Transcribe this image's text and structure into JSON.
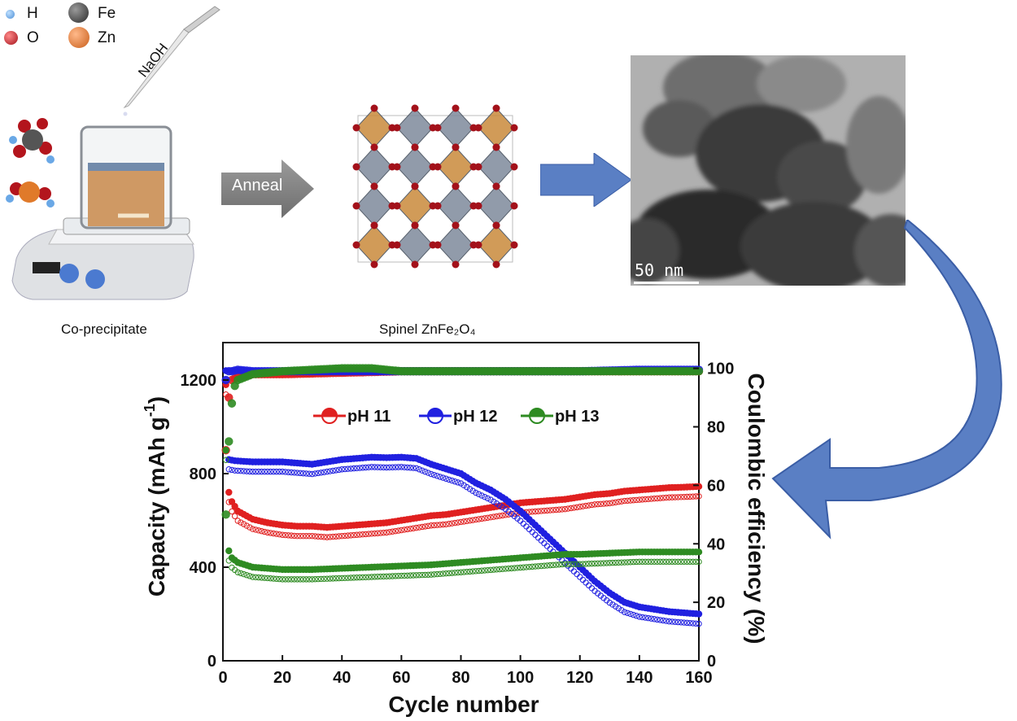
{
  "element_key": [
    {
      "symbol": "H",
      "color": "#5aa0e0"
    },
    {
      "symbol": "O",
      "color": "#c0262c"
    },
    {
      "symbol": "Fe",
      "color": "#4a4a4a"
    },
    {
      "symbol": "Zn",
      "color": "#e07a2a"
    }
  ],
  "synthesis": {
    "reagent": "NaOH",
    "caption": "Co-precipitate"
  },
  "anneal_label": "Anneal",
  "structure_caption": "Spinel ZnFe₂O₄",
  "tem": {
    "scale_label": "50 nm"
  },
  "chart_data": {
    "type": "scatter",
    "xlabel": "Cycle number",
    "ylabel": "Capacity (mAh g",
    "ylabel_sup": "-1",
    "ylabel_close": ")",
    "y2label": "Coulombic efficiency (%)",
    "xlim": [
      0,
      160
    ],
    "ylim": [
      0,
      1360
    ],
    "y2lim": [
      0,
      108.8
    ],
    "xticks": [
      "0",
      "20",
      "40",
      "60",
      "80",
      "100",
      "120",
      "140",
      "160"
    ],
    "yticks": [
      "0",
      "400",
      "800",
      "1200"
    ],
    "y2ticks": [
      "0",
      "20",
      "40",
      "60",
      "80",
      "100"
    ],
    "legend_position": "top-center",
    "series": [
      {
        "name": "pH 11",
        "color": "#e02020",
        "capacity": [
          [
            1,
            1180
          ],
          [
            2,
            720
          ],
          [
            3,
            680
          ],
          [
            5,
            640
          ],
          [
            10,
            605
          ],
          [
            15,
            590
          ],
          [
            20,
            580
          ],
          [
            25,
            575
          ],
          [
            30,
            575
          ],
          [
            35,
            570
          ],
          [
            40,
            575
          ],
          [
            45,
            580
          ],
          [
            50,
            585
          ],
          [
            55,
            590
          ],
          [
            60,
            600
          ],
          [
            65,
            610
          ],
          [
            70,
            620
          ],
          [
            75,
            625
          ],
          [
            80,
            635
          ],
          [
            85,
            645
          ],
          [
            90,
            655
          ],
          [
            95,
            665
          ],
          [
            100,
            675
          ],
          [
            105,
            680
          ],
          [
            110,
            685
          ],
          [
            115,
            690
          ],
          [
            120,
            700
          ],
          [
            125,
            710
          ],
          [
            130,
            715
          ],
          [
            135,
            725
          ],
          [
            140,
            730
          ],
          [
            145,
            735
          ],
          [
            150,
            740
          ],
          [
            155,
            742
          ],
          [
            160,
            745
          ]
        ],
        "efficiency": [
          [
            1,
            72
          ],
          [
            2,
            90
          ],
          [
            3,
            96
          ],
          [
            5,
            97
          ],
          [
            10,
            98
          ],
          [
            20,
            98
          ],
          [
            40,
            98.5
          ],
          [
            60,
            99
          ],
          [
            80,
            99
          ],
          [
            100,
            99
          ],
          [
            120,
            99
          ],
          [
            140,
            99
          ],
          [
            160,
            99
          ]
        ]
      },
      {
        "name": "pH 12",
        "color": "#2020e0",
        "capacity": [
          [
            1,
            1240
          ],
          [
            2,
            860
          ],
          [
            4,
            855
          ],
          [
            10,
            850
          ],
          [
            20,
            850
          ],
          [
            30,
            840
          ],
          [
            35,
            850
          ],
          [
            40,
            860
          ],
          [
            45,
            865
          ],
          [
            50,
            870
          ],
          [
            55,
            868
          ],
          [
            60,
            870
          ],
          [
            65,
            865
          ],
          [
            70,
            840
          ],
          [
            75,
            820
          ],
          [
            80,
            800
          ],
          [
            85,
            760
          ],
          [
            90,
            730
          ],
          [
            95,
            690
          ],
          [
            100,
            640
          ],
          [
            105,
            580
          ],
          [
            110,
            520
          ],
          [
            115,
            460
          ],
          [
            120,
            400
          ],
          [
            125,
            340
          ],
          [
            130,
            290
          ],
          [
            135,
            250
          ],
          [
            140,
            230
          ],
          [
            145,
            220
          ],
          [
            150,
            210
          ],
          [
            155,
            205
          ],
          [
            160,
            200
          ]
        ],
        "efficiency": [
          [
            1,
            96
          ],
          [
            2,
            99
          ],
          [
            3,
            99
          ],
          [
            5,
            99.5
          ],
          [
            10,
            99
          ],
          [
            20,
            99
          ],
          [
            40,
            99
          ],
          [
            60,
            99
          ],
          [
            80,
            99
          ],
          [
            100,
            99
          ],
          [
            120,
            99
          ],
          [
            140,
            99.5
          ],
          [
            160,
            99.5
          ]
        ]
      },
      {
        "name": "pH 13",
        "color": "#2e8b22",
        "capacity": [
          [
            1,
            900
          ],
          [
            2,
            470
          ],
          [
            3,
            440
          ],
          [
            5,
            420
          ],
          [
            10,
            400
          ],
          [
            15,
            395
          ],
          [
            20,
            390
          ],
          [
            30,
            390
          ],
          [
            40,
            395
          ],
          [
            50,
            400
          ],
          [
            60,
            405
          ],
          [
            70,
            410
          ],
          [
            80,
            420
          ],
          [
            90,
            430
          ],
          [
            100,
            440
          ],
          [
            105,
            445
          ],
          [
            110,
            450
          ],
          [
            115,
            455
          ],
          [
            120,
            455
          ],
          [
            130,
            460
          ],
          [
            140,
            465
          ],
          [
            150,
            465
          ],
          [
            160,
            465
          ]
        ],
        "efficiency": [
          [
            1,
            50
          ],
          [
            2,
            75
          ],
          [
            3,
            88
          ],
          [
            4,
            94
          ],
          [
            5,
            96
          ],
          [
            10,
            98
          ],
          [
            20,
            99
          ],
          [
            30,
            99.5
          ],
          [
            40,
            100
          ],
          [
            50,
            100
          ],
          [
            60,
            99
          ],
          [
            80,
            99
          ],
          [
            100,
            99
          ],
          [
            120,
            99
          ],
          [
            140,
            99
          ],
          [
            160,
            99
          ]
        ]
      }
    ]
  }
}
